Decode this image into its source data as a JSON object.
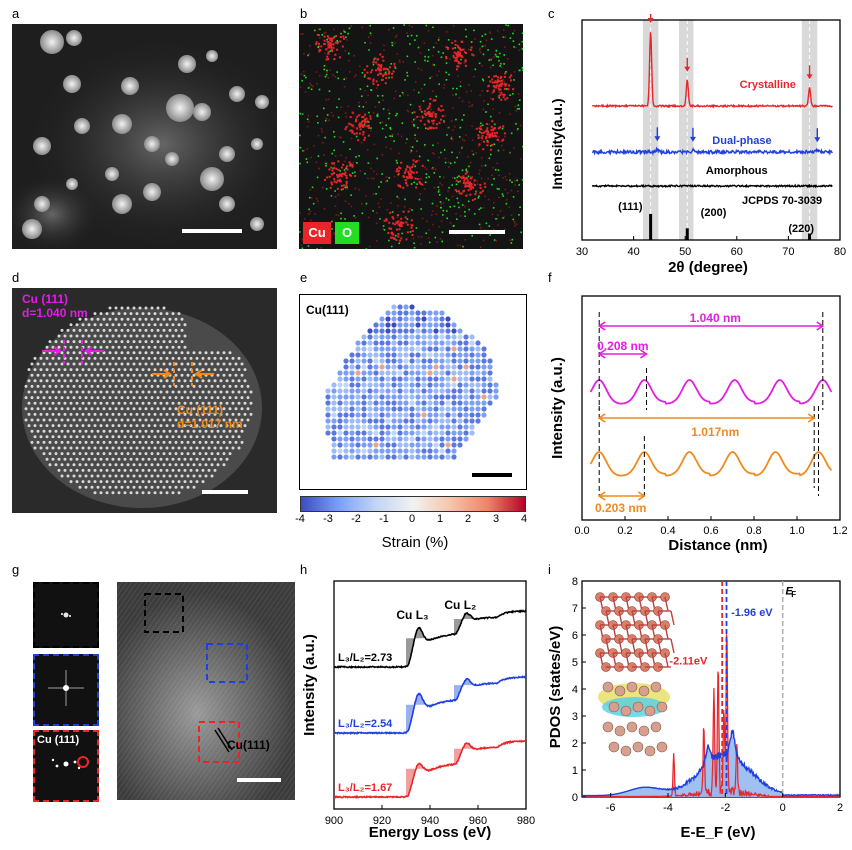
{
  "panel_letters": {
    "a": "a",
    "b": "b",
    "c": "c",
    "d": "d",
    "e": "e",
    "f": "f",
    "g": "g",
    "h": "h",
    "i": "i"
  },
  "panel_b": {
    "cu": "Cu",
    "o": "O"
  },
  "colors": {
    "red": "#e8262a",
    "blue": "#1f3fe0",
    "magenta": "#e21ee2",
    "orange": "#f08a1c",
    "green": "#22dd22"
  },
  "panel_c": {
    "type": "line",
    "ylabel": "Intensity(a.u.)",
    "xlabel": "2θ (degree)",
    "xlim": [
      30,
      80
    ],
    "xticks": [
      "30",
      "40",
      "50",
      "60",
      "70",
      "80"
    ],
    "series": [
      {
        "name": "Crystalline",
        "peaks": [
          {
            "x": 43.3,
            "h": 1.0
          },
          {
            "x": 50.4,
            "h": 0.35
          },
          {
            "x": 74.1,
            "h": 0.25
          }
        ]
      },
      {
        "name": "Dual-phase",
        "peaks": [
          {
            "x": 44.6,
            "h": 0.15
          },
          {
            "x": 51.5,
            "h": 0.12
          },
          {
            "x": 75.6,
            "h": 0.1
          }
        ]
      },
      {
        "name": "Amorphous",
        "peaks": []
      }
    ],
    "reference": {
      "name": "JCPDS 70-3039",
      "lines": [
        {
          "x": 43.3,
          "h": 1.0,
          "label": "(111)"
        },
        {
          "x": 50.4,
          "h": 0.45,
          "label": "(200)"
        },
        {
          "x": 74.1,
          "h": 0.25,
          "label": "(220)"
        }
      ]
    }
  },
  "panel_d": {
    "magenta_label": "Cu (111)",
    "magenta_d": "d=1.040 nm",
    "orange_label": "Cu (111)",
    "orange_d": "d=1.017 nm"
  },
  "panel_e": {
    "title": "Cu(111)",
    "colorbar_label": "Strain (%)",
    "colorbar_ticks": [
      "-4",
      "-3",
      "-2",
      "-1",
      "0",
      "1",
      "2",
      "3",
      "4"
    ]
  },
  "panel_f": {
    "type": "line",
    "ylabel": "Intensity (a.u.)",
    "xlabel": "Distance (nm)",
    "xlim": [
      0,
      1.2
    ],
    "xticks": [
      "0.0",
      "0.2",
      "0.4",
      "0.6",
      "0.8",
      "1.0",
      "1.2"
    ],
    "annotations": {
      "top_long": "1.040 nm",
      "top_short": "0.208 nm",
      "bottom_long": "1.017nm",
      "bottom_short": "0.203 nm"
    },
    "series": [
      {
        "color": "magenta",
        "peaks": [
          0.08,
          0.29,
          0.5,
          0.71,
          0.92,
          1.12
        ]
      },
      {
        "color": "orange",
        "peaks": [
          0.08,
          0.29,
          0.5,
          0.7,
          0.9,
          1.1
        ]
      }
    ]
  },
  "panel_g": {
    "fft_label": "Cu (111)",
    "image_label": "Cu(111)"
  },
  "panel_h": {
    "type": "line",
    "ylabel": "Intensity (a.u.)",
    "xlabel": "Energy Loss (eV)",
    "xlim": [
      900,
      980
    ],
    "xticks": [
      "900",
      "920",
      "940",
      "960",
      "980"
    ],
    "edge_L3": "Cu L₃",
    "edge_L2": "Cu L₂",
    "ratios": [
      {
        "text": "L₃/L₂=2.73",
        "color": "#000000"
      },
      {
        "text": "L₃/L₂=2.54",
        "color": "#1f3fe0"
      },
      {
        "text": "L₃/L₂=1.67",
        "color": "#e8262a"
      }
    ]
  },
  "panel_i": {
    "type": "area",
    "ylabel": "PDOS (states/eV)",
    "xlabel": "E-E_F (eV)",
    "xlim": [
      -7,
      2
    ],
    "ylim": [
      0,
      8
    ],
    "xticks": [
      "-6",
      "-4",
      "-2",
      "0",
      "2"
    ],
    "yticks": [
      "0",
      "1",
      "2",
      "3",
      "4",
      "5",
      "6",
      "7",
      "8"
    ],
    "center_red": "-2.11eV",
    "center_blue": "-1.96 eV",
    "ef_label": "E",
    "ef_sub": "F"
  }
}
